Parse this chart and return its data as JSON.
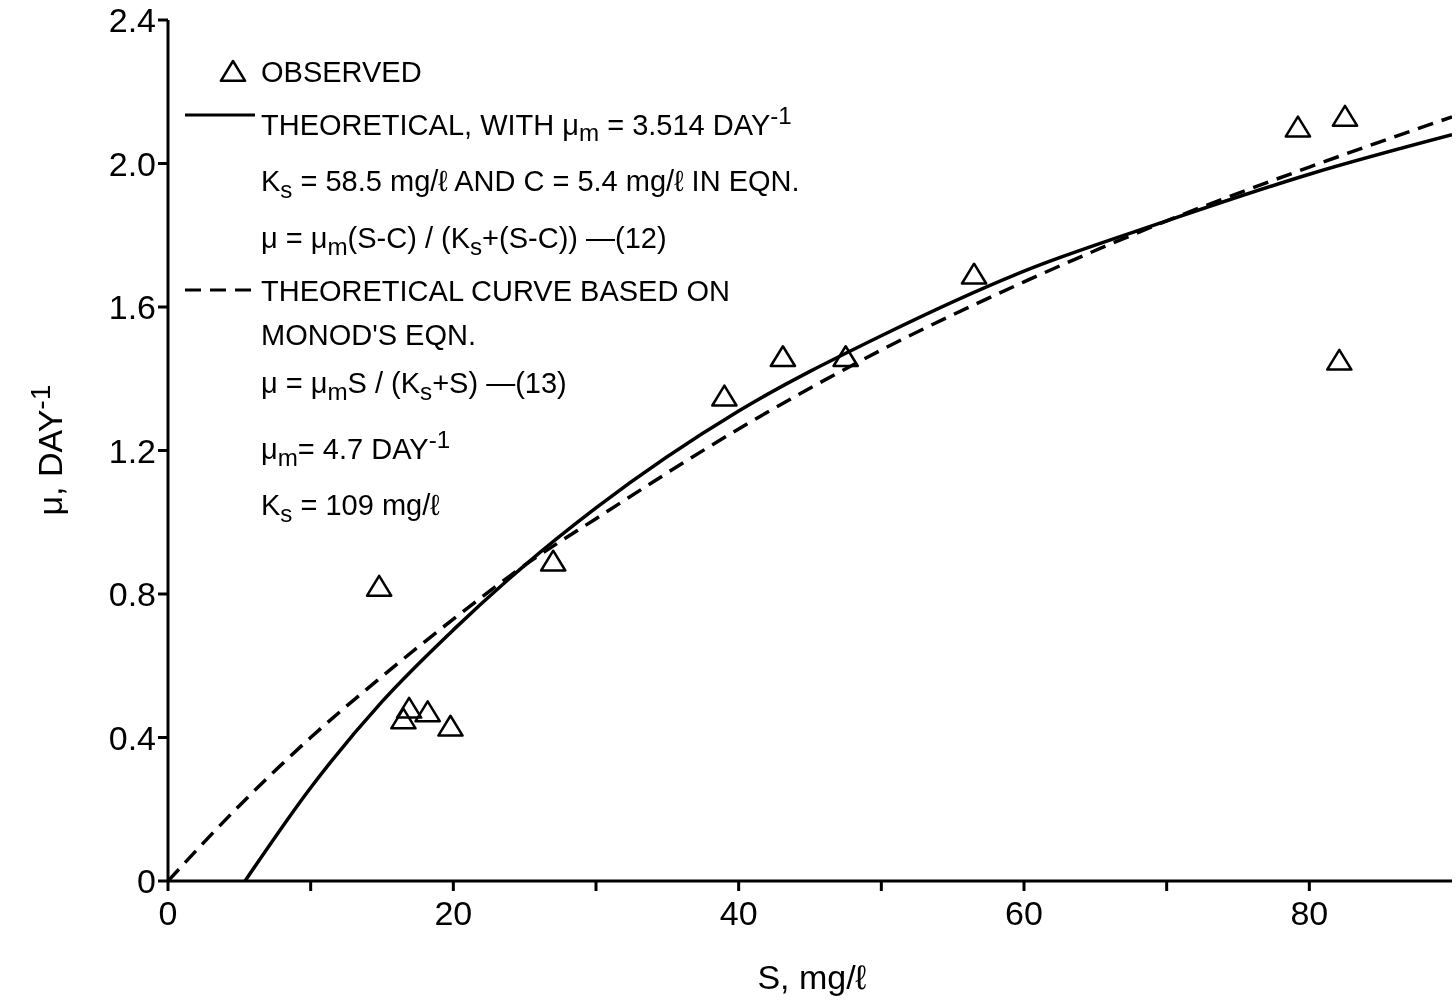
{
  "chart_data": {
    "type": "line",
    "xlabel": "S, mg/ℓ",
    "ylabel": "μ, DAY$^{-1}$",
    "xlim": [
      0,
      90
    ],
    "xticks": [
      0,
      {
        "value": 10,
        "label": null
      },
      20,
      {
        "value": 30,
        "label": null
      },
      40,
      {
        "value": 50,
        "label": null
      },
      60,
      {
        "value": 70,
        "label": null
      },
      80
    ],
    "ylim": [
      0,
      2.4
    ],
    "yticks": [
      0,
      0.4,
      0.8,
      1.2,
      1.6,
      {
        "value": 2,
        "label": "2.0"
      },
      2.4
    ],
    "legend": "top left",
    "series": [
      {
        "name": "OBSERVED",
        "type": "scatter",
        "marker": "triangle",
        "color": "#000000",
        "x": [
          14.8,
          16.5,
          16.9,
          18.2,
          19.8,
          27.0,
          39.0,
          43.1,
          47.5,
          56.5,
          79.2,
          82.5,
          82.1
        ],
        "values": [
          0.82,
          0.45,
          0.48,
          0.47,
          0.43,
          0.89,
          1.35,
          1.46,
          1.46,
          1.69,
          2.1,
          2.13,
          1.45
        ]
      },
      {
        "name": "THEORETICAL, WITH μ$_{m}$ = 3.514 DAY$^{-1}$",
        "line_style": "solid",
        "color": "#000000",
        "x": [
          5.4,
          10,
          15,
          20,
          25,
          30,
          40,
          50,
          60,
          70,
          80,
          90
        ],
        "values": [
          0,
          0.26,
          0.5,
          0.7,
          0.88,
          1.04,
          1.31,
          1.52,
          1.7,
          1.84,
          1.97,
          2.08
        ]
      },
      {
        "name": "THEORETICAL CURVE BASED ON MONOD'S EQN.",
        "line_style": "dashed",
        "color": "#000000",
        "x": [
          0,
          5,
          10,
          15,
          20,
          25,
          30,
          40,
          50,
          60,
          70,
          80,
          90
        ],
        "values": [
          0,
          0.21,
          0.4,
          0.57,
          0.73,
          0.88,
          1.01,
          1.26,
          1.48,
          1.67,
          1.84,
          1.99,
          2.13
        ]
      }
    ],
    "annotations": [
      "K$_{s}$ = 58.5 mg/ℓ AND C = 5.4 mg/ℓ IN EQN.",
      "μ = μ$_{m}$(S-C) / (K$_{s}$+(S-C)) —(12)",
      "μ = μ$_{m}$S / (K$_{s}$+S) —(13)",
      "μ$_{m}$= 4.7 DAY$^{-1}$",
      "K$_{s}$ = 109 mg/ℓ"
    ]
  }
}
